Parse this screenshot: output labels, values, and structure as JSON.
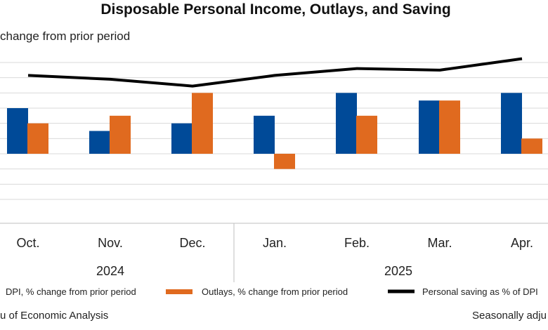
{
  "title": "Disposable Personal Income, Outlays, and Saving",
  "ylabel": "change from prior period",
  "footer": {
    "source": "u of Economic Analysis",
    "note": "Seasonally adju"
  },
  "colors": {
    "dpi": "#004a98",
    "outlays": "#e06a1f",
    "saving": "#000000",
    "grid": "#d9d9d9"
  },
  "chart_data": {
    "type": "bar",
    "categories": [
      "Oct.",
      "Nov.",
      "Dec.",
      "Jan.",
      "Feb.",
      "Mar.",
      "Apr."
    ],
    "groups": [
      {
        "label": "2024",
        "categories": [
          "Oct.",
          "Nov.",
          "Dec."
        ]
      },
      {
        "label": "2025",
        "categories": [
          "Jan.",
          "Feb.",
          "Mar.",
          "Apr."
        ]
      }
    ],
    "ylim": [
      -0.6,
      1.2
    ],
    "grid": true,
    "series": [
      {
        "name": "DPI, % change from prior period",
        "kind": "bar",
        "values": [
          0.6,
          0.3,
          0.4,
          0.5,
          0.8,
          0.7,
          0.8
        ]
      },
      {
        "name": "Outlays, % change from prior period",
        "kind": "bar",
        "values": [
          0.4,
          0.5,
          0.8,
          -0.2,
          0.5,
          0.7,
          0.2
        ]
      },
      {
        "name": "Personal saving as % of DPI",
        "kind": "line",
        "values": [
          1.03,
          0.98,
          0.89,
          1.03,
          1.12,
          1.1,
          1.25
        ]
      }
    ],
    "legend_position": "bottom"
  }
}
